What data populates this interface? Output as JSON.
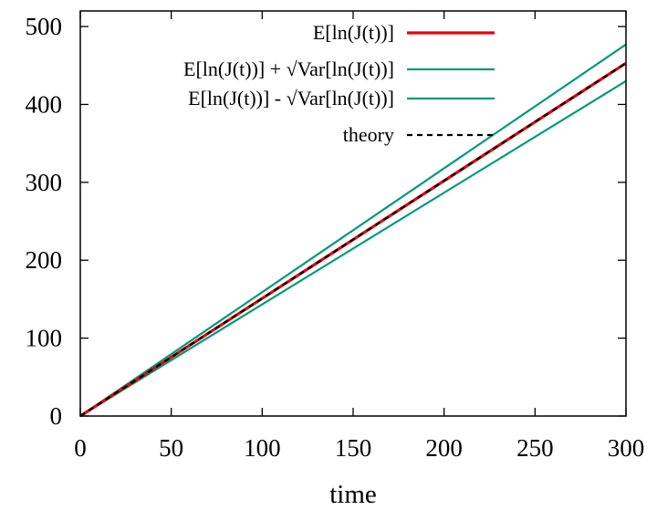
{
  "chart_data": {
    "type": "line",
    "xlabel": "time",
    "ylabel": "",
    "xlim": [
      0,
      300
    ],
    "ylim": [
      0,
      520
    ],
    "x_ticks": [
      0,
      50,
      100,
      150,
      200,
      250,
      300
    ],
    "y_ticks": [
      0,
      100,
      200,
      300,
      400,
      500
    ],
    "grid": false,
    "legend": "top-left-inside",
    "series": [
      {
        "name": "E[ln(J(t))]",
        "color": "#e8000b",
        "style": "solid",
        "x": [
          0,
          300
        ],
        "y": [
          0,
          453
        ]
      },
      {
        "name": "E[ln(J(t))] + √Var[ln(J(t))]",
        "color": "#009b77",
        "style": "solid",
        "x": [
          0,
          300
        ],
        "y": [
          0,
          477
        ]
      },
      {
        "name": "E[ln(J(t))] - √Var[ln(J(t))]",
        "color": "#009b77",
        "style": "solid",
        "x": [
          0,
          300
        ],
        "y": [
          0,
          430
        ]
      },
      {
        "name": "theory",
        "color": "#000000",
        "style": "dashed",
        "x": [
          0,
          300
        ],
        "y": [
          0,
          453
        ]
      }
    ]
  }
}
